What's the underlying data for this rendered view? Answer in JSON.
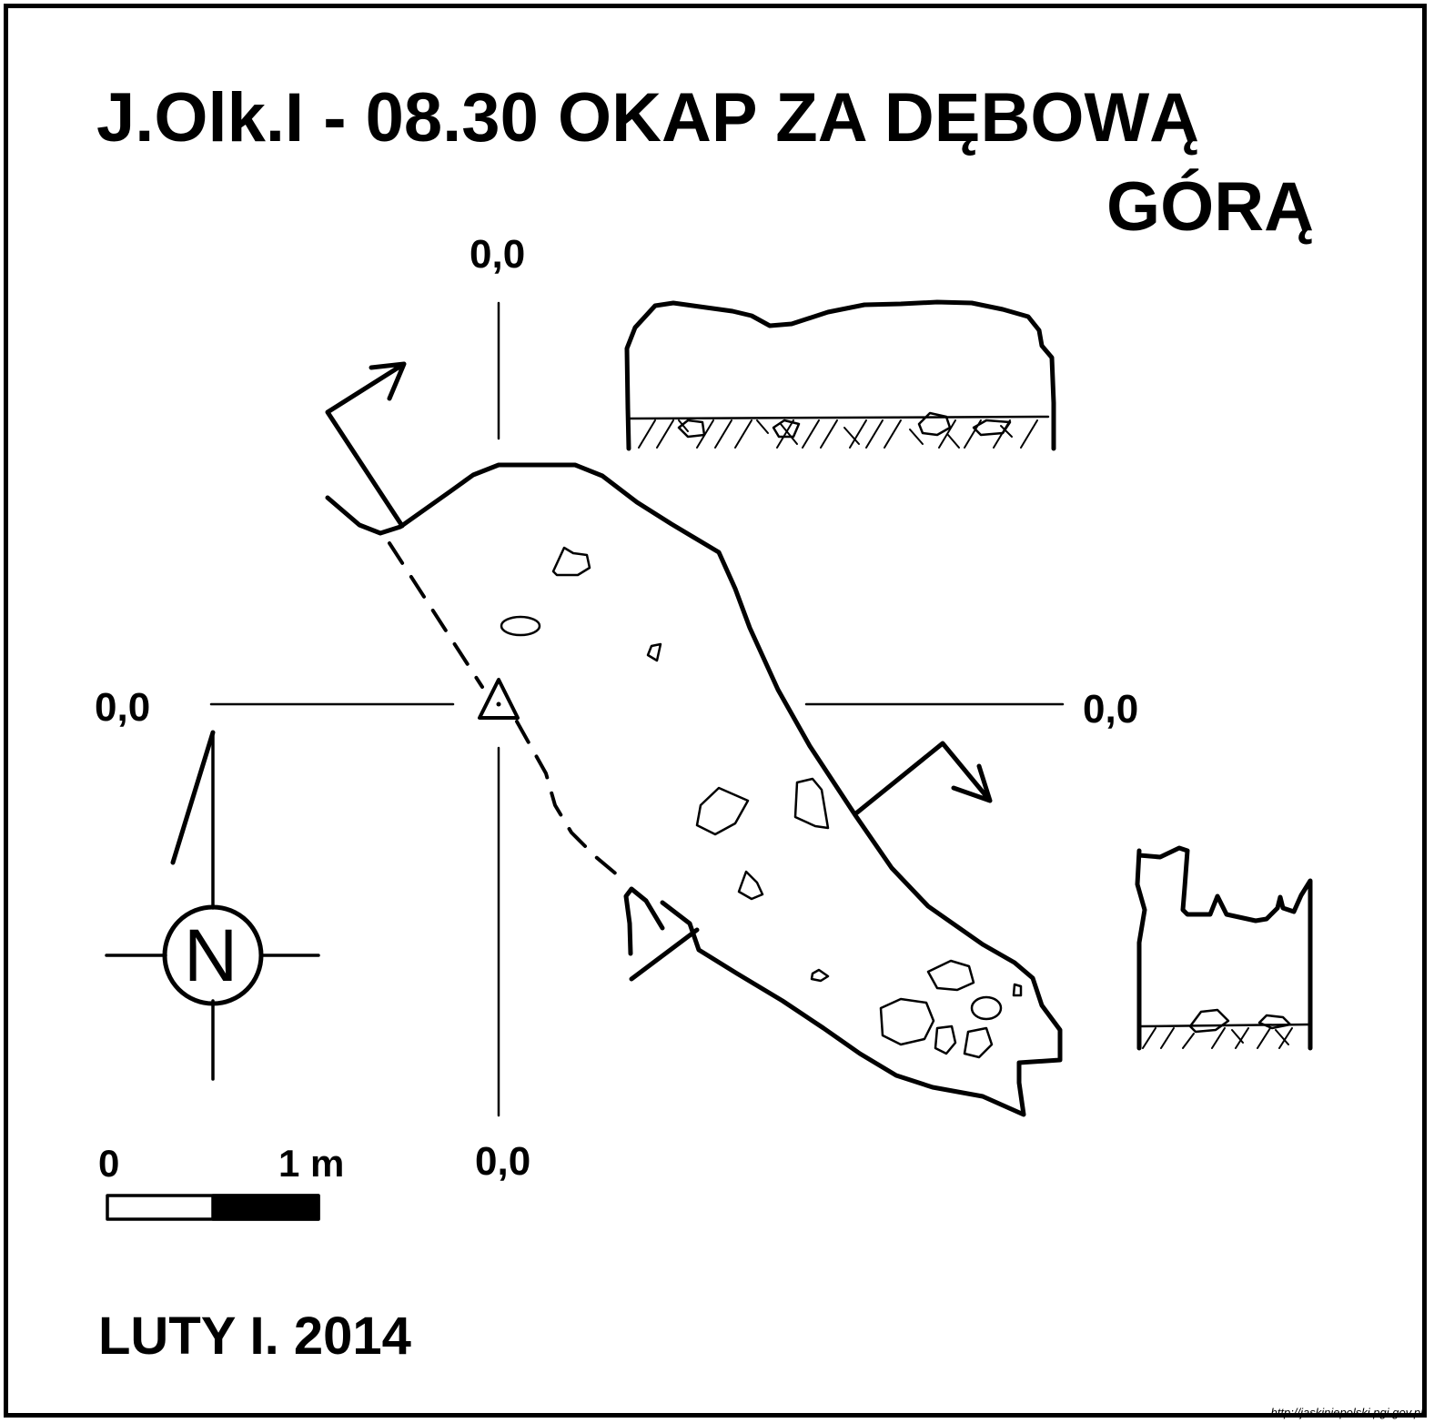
{
  "title": {
    "line1": "J.Olk.I - 08.30  OKAP ZA DĘBOWĄ",
    "line2": "GÓRĄ"
  },
  "datum_labels": {
    "top": "0,0",
    "left": "0,0",
    "right": "0,0",
    "bottom": "0,0"
  },
  "compass": {
    "letter": "N",
    "icon": "north-arrow-icon"
  },
  "scale": {
    "start": "0",
    "end": "1 m"
  },
  "footer": "LUTY I. 2014",
  "credit": "http://jaskiniepolski.pgi.gov.pl",
  "colors": {
    "ink": "#000000",
    "paper": "#ffffff"
  }
}
